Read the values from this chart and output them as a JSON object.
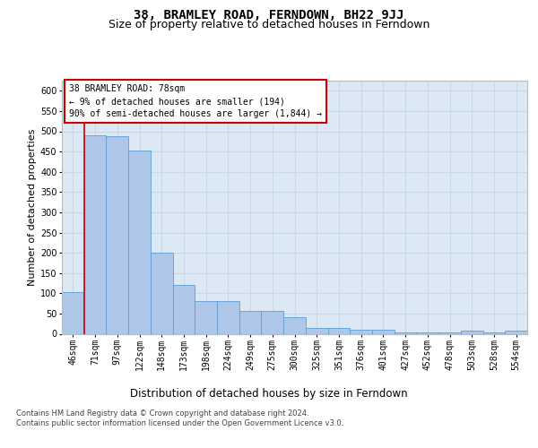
{
  "title": "38, BRAMLEY ROAD, FERNDOWN, BH22 9JJ",
  "subtitle": "Size of property relative to detached houses in Ferndown",
  "xlabel": "Distribution of detached houses by size in Ferndown",
  "ylabel": "Number of detached properties",
  "categories": [
    "46sqm",
    "71sqm",
    "97sqm",
    "122sqm",
    "148sqm",
    "173sqm",
    "198sqm",
    "224sqm",
    "249sqm",
    "275sqm",
    "300sqm",
    "325sqm",
    "351sqm",
    "376sqm",
    "401sqm",
    "427sqm",
    "452sqm",
    "478sqm",
    "503sqm",
    "528sqm",
    "554sqm"
  ],
  "values": [
    103,
    490,
    487,
    452,
    200,
    120,
    80,
    80,
    57,
    57,
    40,
    15,
    15,
    9,
    10,
    3,
    3,
    3,
    7,
    3,
    7
  ],
  "bar_color": "#aec6e8",
  "bar_edge_color": "#5a9fd4",
  "marker_line_color": "#cc0000",
  "annotation_text": "38 BRAMLEY ROAD: 78sqm\n← 9% of detached houses are smaller (194)\n90% of semi-detached houses are larger (1,844) →",
  "annotation_box_edge_color": "#cc0000",
  "footnote": "Contains HM Land Registry data © Crown copyright and database right 2024.\nContains public sector information licensed under the Open Government Licence v3.0.",
  "ylim_max": 625,
  "yticks": [
    0,
    50,
    100,
    150,
    200,
    250,
    300,
    350,
    400,
    450,
    500,
    550,
    600
  ],
  "grid_color": "#c8d8e8",
  "plot_bg_color": "#dce8f4",
  "title_fontsize": 10,
  "subtitle_fontsize": 9,
  "ylabel_fontsize": 8,
  "xlabel_fontsize": 8.5,
  "tick_fontsize": 7,
  "annotation_fontsize": 7,
  "footnote_fontsize": 6
}
